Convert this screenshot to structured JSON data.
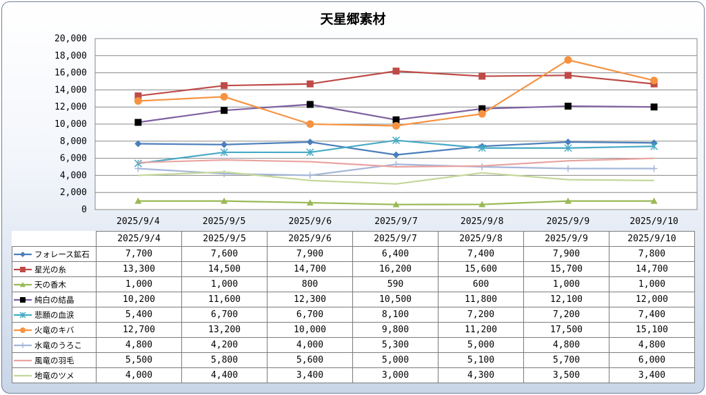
{
  "chart_data": {
    "type": "line",
    "title": "天星郷素材",
    "categories": [
      "2025/9/4",
      "2025/9/5",
      "2025/9/6",
      "2025/9/7",
      "2025/9/8",
      "2025/9/9",
      "2025/9/10"
    ],
    "ylim": [
      0,
      20000
    ],
    "yticks": [
      "0",
      "2,000",
      "4,000",
      "6,000",
      "8,000",
      "10,000",
      "12,000",
      "14,000",
      "16,000",
      "18,000",
      "20,000"
    ],
    "grid": true,
    "legend": "data-table",
    "series": [
      {
        "name": "フォレース鉱石",
        "color": "#4a7ebb",
        "marker": "diamond",
        "values": [
          7700,
          7600,
          7900,
          6400,
          7400,
          7900,
          7800
        ],
        "labels": [
          "7,700",
          "7,600",
          "7,900",
          "6,400",
          "7,400",
          "7,900",
          "7,800"
        ]
      },
      {
        "name": "星光の糸",
        "color": "#be4b48",
        "marker": "square",
        "values": [
          13300,
          14500,
          14700,
          16200,
          15600,
          15700,
          14700
        ],
        "labels": [
          "13,300",
          "14,500",
          "14,700",
          "16,200",
          "15,600",
          "15,700",
          "14,700"
        ]
      },
      {
        "name": "天の香木",
        "color": "#98b954",
        "marker": "triangle",
        "values": [
          1000,
          1000,
          800,
          590,
          600,
          1000,
          1000
        ],
        "labels": [
          "1,000",
          "1,000",
          "800",
          "590",
          "600",
          "1,000",
          "1,000"
        ]
      },
      {
        "name": "純白の結晶",
        "color": "#7d5fa0",
        "marker": "square",
        "markerColor": "#000000",
        "values": [
          10200,
          11600,
          12300,
          10500,
          11800,
          12100,
          12000
        ],
        "labels": [
          "10,200",
          "11,600",
          "12,300",
          "10,500",
          "11,800",
          "12,100",
          "12,000"
        ]
      },
      {
        "name": "悲願の血涙",
        "color": "#46aac5",
        "marker": "star",
        "values": [
          5400,
          6700,
          6700,
          8100,
          7200,
          7200,
          7400
        ],
        "labels": [
          "5,400",
          "6,700",
          "6,700",
          "8,100",
          "7,200",
          "7,200",
          "7,400"
        ]
      },
      {
        "name": "火竜のキバ",
        "color": "#f69240",
        "marker": "circle",
        "values": [
          12700,
          13200,
          10000,
          9800,
          11200,
          17500,
          15100
        ],
        "labels": [
          "12,700",
          "13,200",
          "10,000",
          "9,800",
          "11,200",
          "17,500",
          "15,100"
        ]
      },
      {
        "name": "水竜のうろこ",
        "color": "#a5b6d8",
        "marker": "plus",
        "values": [
          4800,
          4200,
          4000,
          5300,
          5000,
          4800,
          4800
        ],
        "labels": [
          "4,800",
          "4,200",
          "4,000",
          "5,300",
          "5,000",
          "4,800",
          "4,800"
        ]
      },
      {
        "name": "風竜の羽毛",
        "color": "#e8a3a1",
        "marker": "none",
        "values": [
          5500,
          5800,
          5600,
          5000,
          5100,
          5700,
          6000
        ],
        "labels": [
          "5,500",
          "5,800",
          "5,600",
          "5,000",
          "5,100",
          "5,700",
          "6,000"
        ]
      },
      {
        "name": "地竜のツメ",
        "color": "#c4d79b",
        "marker": "none",
        "values": [
          4000,
          4400,
          3400,
          3000,
          4300,
          3500,
          3400
        ],
        "labels": [
          "4,000",
          "4,400",
          "3,400",
          "3,000",
          "4,300",
          "3,500",
          "3,400"
        ]
      }
    ]
  }
}
